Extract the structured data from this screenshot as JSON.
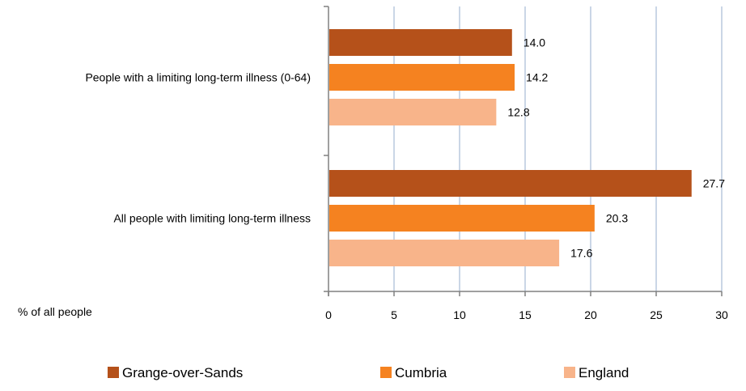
{
  "chart_data": {
    "type": "bar",
    "orientation": "horizontal",
    "categories": [
      "People with a limiting long-term illness (0-64)",
      "All people  with limiting long-term illness"
    ],
    "series": [
      {
        "name": "Grange-over-Sands",
        "color": "#B5511A",
        "values": [
          14.0,
          27.7
        ]
      },
      {
        "name": "Cumbria",
        "color": "#F58220",
        "values": [
          14.2,
          20.3
        ]
      },
      {
        "name": "England",
        "color": "#F8B48A",
        "values": [
          12.8,
          17.6
        ]
      }
    ],
    "data_labels": [
      [
        "14.0",
        "14.2",
        "12.8"
      ],
      [
        "27.7",
        "20.3",
        "17.6"
      ]
    ],
    "xlabel": "% of all people",
    "xlim": [
      0,
      30
    ],
    "xticks": [
      0,
      5,
      10,
      15,
      20,
      25,
      30
    ],
    "grid": "vertical",
    "grid_color": "#B9C9DD",
    "legend_position": "bottom"
  }
}
